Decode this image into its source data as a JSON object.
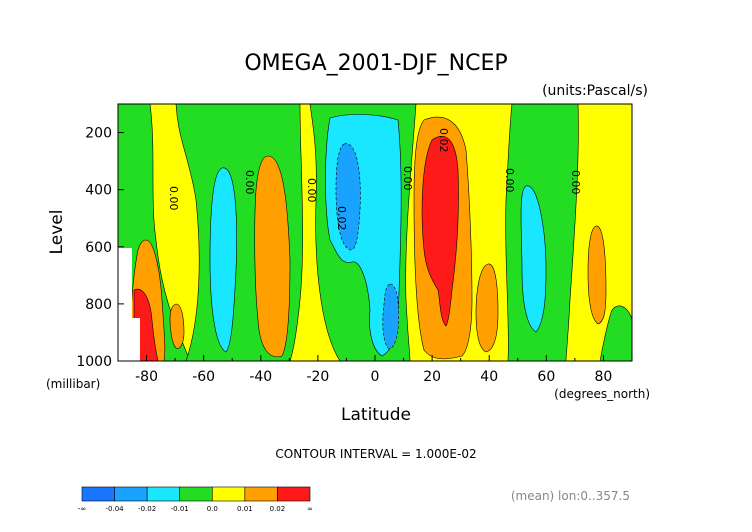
{
  "chart_data": {
    "type": "heatmap",
    "title": "OMEGA_2001-DJF_NCEP",
    "units_note": "(units:Pascal/s)",
    "xlabel": "Latitude",
    "ylabel": "Level",
    "x_unit": "(degrees_north)",
    "y_unit": "(millibar)",
    "xlim": [
      -90,
      90
    ],
    "ylim": [
      1000,
      100
    ],
    "x_ticks": [
      "-80",
      "-60",
      "-40",
      "-20",
      "0",
      "20",
      "40",
      "60",
      "80"
    ],
    "y_ticks": [
      "200",
      "400",
      "600",
      "800",
      "1000"
    ],
    "contour_interval": "CONTOUR INTERVAL = 1.000E-02",
    "footnote": "(mean) lon:0..357.5",
    "contour_labels": [
      "0.00",
      "0.00",
      "0.00",
      "0.02",
      "0.00",
      "0.02",
      "0.00",
      "0.00"
    ],
    "colorbar": {
      "labels": [
        "-∞",
        "-0.04",
        "-0.02",
        "-0.01",
        "0.0",
        "0.01",
        "0.02",
        "∞"
      ],
      "colors": [
        "#1a75ff",
        "#19a3ff",
        "#19e6ff",
        "#22dd22",
        "#ffff00",
        "#ffa000",
        "#ff1a1a"
      ]
    },
    "colors": {
      "neg_strong": "#19e6ff",
      "neg_weak": "#22dd22",
      "pos_weak": "#ffff00",
      "pos_mid": "#ffa000",
      "pos_strong": "#ff1a1a",
      "neg_mid": "#19a3ff",
      "neg_deep": "#1a75ff"
    }
  }
}
